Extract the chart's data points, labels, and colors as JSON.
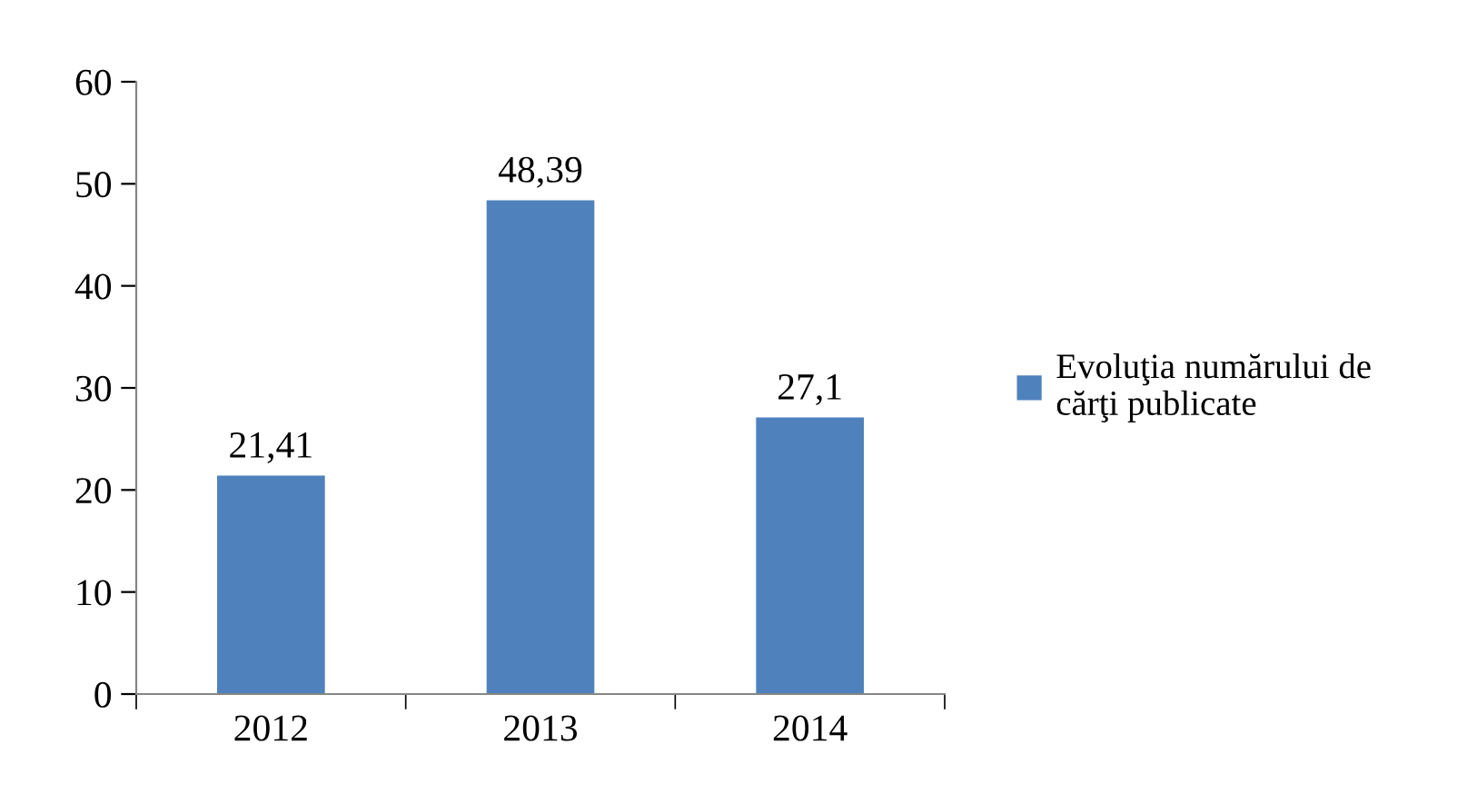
{
  "chart_data": {
    "type": "bar",
    "categories": [
      "2012",
      "2013",
      "2014"
    ],
    "series": [
      {
        "name": "Evoluţia numărului de\ncărţi publicate",
        "color": "#4f81bd",
        "values": [
          21.41,
          48.39,
          27.1
        ],
        "value_labels": [
          "21,41",
          "48,39",
          "27,1"
        ]
      }
    ],
    "ylim": [
      0,
      60
    ],
    "yticks": [
      0,
      10,
      20,
      30,
      40,
      50,
      60
    ],
    "grid": false,
    "legend": "right"
  }
}
